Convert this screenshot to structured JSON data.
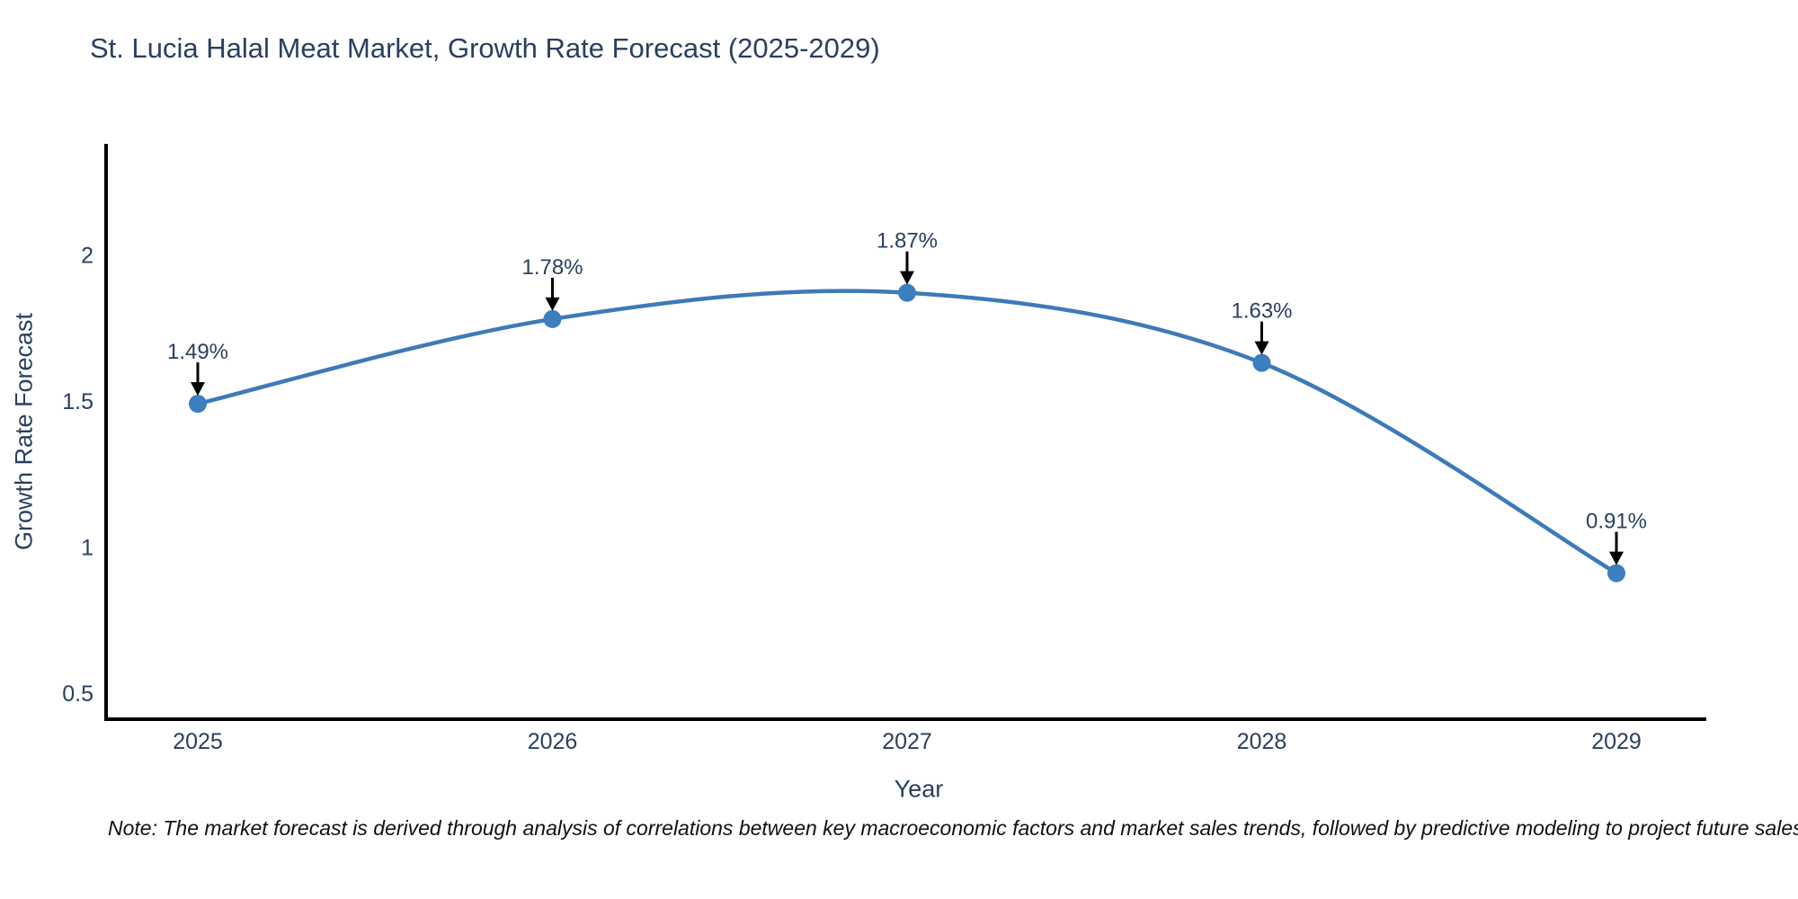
{
  "title": "St. Lucia Halal Meat Market, Growth Rate Forecast (2025-2029)",
  "note": "Note: The market forecast is derived through analysis of correlations between key macroeconomic factors and market sales trends, followed by predictive modeling to project future sales",
  "chart_data": {
    "type": "line",
    "title": "St. Lucia Halal Meat Market, Growth Rate Forecast (2025-2029)",
    "xlabel": "Year",
    "ylabel": "Growth Rate Forecast",
    "categories": [
      "2025",
      "2026",
      "2027",
      "2028",
      "2029"
    ],
    "series": [
      {
        "name": "Growth Rate Forecast",
        "values": [
          1.49,
          1.78,
          1.87,
          1.63,
          0.91
        ],
        "point_labels": [
          "1.49%",
          "1.78%",
          "1.87%",
          "1.63%",
          "0.91%"
        ]
      }
    ],
    "line_shape": "spline",
    "markers": true,
    "annotations": "arrow-down-to-point",
    "grid": false,
    "legend_position": "none",
    "yticks": [
      0.5,
      1,
      1.5,
      2
    ],
    "ytick_labels": [
      "0.5",
      "1",
      "1.5",
      "2"
    ],
    "ylim": [
      0.41,
      2.38
    ],
    "colors": {
      "line": "#3d7ab8",
      "marker": "#3d7ebf",
      "axis": "#000000",
      "arrow": "#000000",
      "text": "#2a3f5f",
      "background": "#ffffff"
    }
  }
}
